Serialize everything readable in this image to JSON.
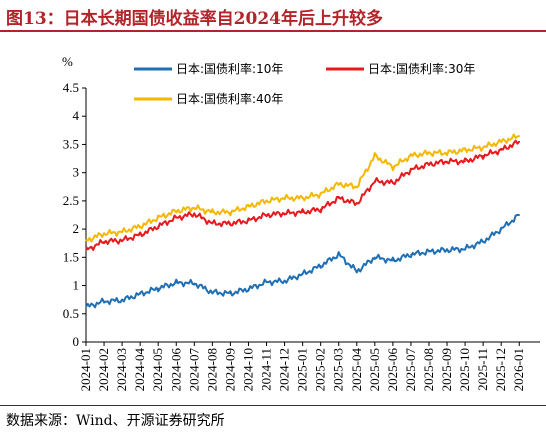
{
  "title": "图13：日本长期国债收益率自2024年后上升较多",
  "source": "数据来源：Wind、开源证券研究所",
  "chart_data": {
    "type": "line",
    "y_unit": "%",
    "ylim": [
      0,
      4.5
    ],
    "yticks": [
      "0",
      "0.5",
      "1",
      "1.5",
      "2",
      "2.5",
      "3",
      "3.5",
      "4",
      "4.5"
    ],
    "x_range": [
      "2024-01",
      "2026-02"
    ],
    "x_ticks": [
      "2024-01",
      "2024-02",
      "2024-03",
      "2024-04",
      "2024-05",
      "2024-06",
      "2024-07",
      "2024-08",
      "2024-09",
      "2024-10",
      "2024-11",
      "2024-12",
      "2025-01",
      "2025-02",
      "2025-03",
      "2025-04",
      "2025-05",
      "2025-06",
      "2025-07",
      "2025-08",
      "2025-09",
      "2025-10",
      "2025-11",
      "2025-12",
      "2026-01"
    ],
    "grid": false,
    "legend_position": "top",
    "series": [
      {
        "name": "日本:国债利率:10年",
        "color": "#1f6fb5",
        "points": [
          [
            "2024-01",
            0.62
          ],
          [
            "2024-02",
            0.72
          ],
          [
            "2024-03",
            0.74
          ],
          [
            "2024-04",
            0.85
          ],
          [
            "2024-05",
            0.95
          ],
          [
            "2024-06",
            1.05
          ],
          [
            "2024-07",
            1.04
          ],
          [
            "2024-08",
            0.88
          ],
          [
            "2024-09",
            0.86
          ],
          [
            "2024-10",
            0.94
          ],
          [
            "2024-11",
            1.06
          ],
          [
            "2024-12",
            1.08
          ],
          [
            "2025-01",
            1.2
          ],
          [
            "2025-02",
            1.35
          ],
          [
            "2025-03",
            1.55
          ],
          [
            "2025-04",
            1.25
          ],
          [
            "2025-05",
            1.5
          ],
          [
            "2025-06",
            1.44
          ],
          [
            "2025-07",
            1.55
          ],
          [
            "2025-08",
            1.6
          ],
          [
            "2025-09",
            1.63
          ],
          [
            "2025-10",
            1.65
          ],
          [
            "2025-11",
            1.78
          ],
          [
            "2025-12",
            2.0
          ],
          [
            "2026-01",
            2.25
          ]
        ]
      },
      {
        "name": "日本:国债利率:30年",
        "color": "#e8191c",
        "points": [
          [
            "2024-01",
            1.63
          ],
          [
            "2024-02",
            1.78
          ],
          [
            "2024-03",
            1.8
          ],
          [
            "2024-04",
            1.9
          ],
          [
            "2024-05",
            2.05
          ],
          [
            "2024-06",
            2.2
          ],
          [
            "2024-07",
            2.27
          ],
          [
            "2024-08",
            2.1
          ],
          [
            "2024-09",
            2.1
          ],
          [
            "2024-10",
            2.15
          ],
          [
            "2024-11",
            2.25
          ],
          [
            "2024-12",
            2.28
          ],
          [
            "2025-01",
            2.3
          ],
          [
            "2025-02",
            2.35
          ],
          [
            "2025-03",
            2.55
          ],
          [
            "2025-04",
            2.45
          ],
          [
            "2025-05",
            2.85
          ],
          [
            "2025-06",
            2.82
          ],
          [
            "2025-07",
            3.05
          ],
          [
            "2025-08",
            3.15
          ],
          [
            "2025-09",
            3.2
          ],
          [
            "2025-10",
            3.2
          ],
          [
            "2025-11",
            3.3
          ],
          [
            "2025-12",
            3.4
          ],
          [
            "2026-01",
            3.55
          ]
        ]
      },
      {
        "name": "日本:国债利率:40年",
        "color": "#f5b800",
        "points": [
          [
            "2024-01",
            1.8
          ],
          [
            "2024-02",
            1.92
          ],
          [
            "2024-03",
            1.95
          ],
          [
            "2024-04",
            2.05
          ],
          [
            "2024-05",
            2.2
          ],
          [
            "2024-06",
            2.32
          ],
          [
            "2024-07",
            2.38
          ],
          [
            "2024-08",
            2.3
          ],
          [
            "2024-09",
            2.3
          ],
          [
            "2024-10",
            2.4
          ],
          [
            "2024-11",
            2.5
          ],
          [
            "2024-12",
            2.55
          ],
          [
            "2025-01",
            2.55
          ],
          [
            "2025-02",
            2.62
          ],
          [
            "2025-03",
            2.8
          ],
          [
            "2025-04",
            2.75
          ],
          [
            "2025-05",
            3.3
          ],
          [
            "2025-06",
            3.1
          ],
          [
            "2025-07",
            3.3
          ],
          [
            "2025-08",
            3.35
          ],
          [
            "2025-09",
            3.35
          ],
          [
            "2025-10",
            3.4
          ],
          [
            "2025-11",
            3.45
          ],
          [
            "2025-12",
            3.55
          ],
          [
            "2026-01",
            3.65
          ]
        ]
      }
    ]
  }
}
